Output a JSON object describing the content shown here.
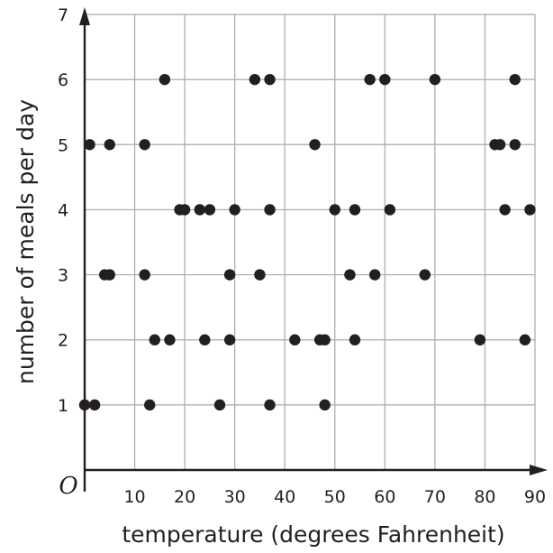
{
  "chart_data": {
    "type": "scatter",
    "xlabel": "temperature (degrees Fahrenheit)",
    "ylabel": "number of meals per day",
    "origin_label": "O",
    "xlim": [
      0,
      90
    ],
    "ylim": [
      0,
      7
    ],
    "x_ticks": [
      10,
      20,
      30,
      40,
      50,
      60,
      70,
      80,
      90
    ],
    "y_ticks": [
      1,
      2,
      3,
      4,
      5,
      6,
      7
    ],
    "grid": true,
    "colors": {
      "point": "#231f20",
      "grid": "#a7a9ac",
      "axis": "#231f20"
    },
    "points": [
      [
        0,
        1
      ],
      [
        2,
        1
      ],
      [
        13,
        1
      ],
      [
        27,
        1
      ],
      [
        37,
        1
      ],
      [
        48,
        1
      ],
      [
        14,
        2
      ],
      [
        17,
        2
      ],
      [
        24,
        2
      ],
      [
        29,
        2
      ],
      [
        42,
        2
      ],
      [
        47,
        2
      ],
      [
        48,
        2
      ],
      [
        54,
        2
      ],
      [
        79,
        2
      ],
      [
        88,
        2
      ],
      [
        4,
        3
      ],
      [
        5,
        3
      ],
      [
        12,
        3
      ],
      [
        29,
        3
      ],
      [
        35,
        3
      ],
      [
        53,
        3
      ],
      [
        58,
        3
      ],
      [
        68,
        3
      ],
      [
        19,
        4
      ],
      [
        20,
        4
      ],
      [
        23,
        4
      ],
      [
        25,
        4
      ],
      [
        30,
        4
      ],
      [
        37,
        4
      ],
      [
        50,
        4
      ],
      [
        54,
        4
      ],
      [
        61,
        4
      ],
      [
        84,
        4
      ],
      [
        89,
        4
      ],
      [
        1,
        5
      ],
      [
        5,
        5
      ],
      [
        12,
        5
      ],
      [
        46,
        5
      ],
      [
        82,
        5
      ],
      [
        83,
        5
      ],
      [
        86,
        5
      ],
      [
        16,
        6
      ],
      [
        34,
        6
      ],
      [
        37,
        6
      ],
      [
        57,
        6
      ],
      [
        60,
        6
      ],
      [
        70,
        6
      ],
      [
        86,
        6
      ]
    ]
  }
}
